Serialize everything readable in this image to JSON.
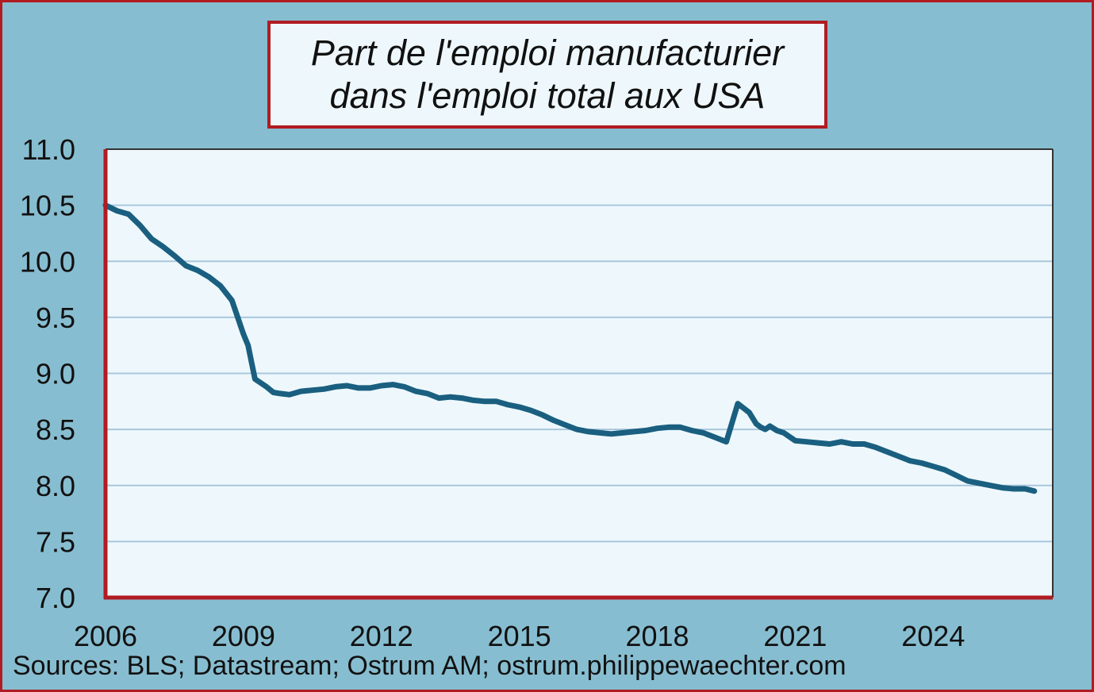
{
  "title_line1": "Part de l'emploi manufacturier",
  "title_line2": "dans l'emploi total aux USA",
  "source": "Sources: BLS; Datastream; Ostrum AM; ostrum.philippewaechter.com",
  "colors": {
    "background": "#87bdd0",
    "plot_area": "#eef8fc",
    "border": "#b01c22",
    "line": "#1a5f80",
    "grid": "#a9c7dd"
  },
  "chart_data": {
    "type": "line",
    "title": "Part de l'emploi manufacturier dans l'emploi total aux USA",
    "xlabel": "",
    "ylabel": "",
    "xlim": [
      2006,
      2026.6
    ],
    "ylim": [
      7.0,
      11.0
    ],
    "x_ticks": [
      "2006",
      "2009",
      "2012",
      "2015",
      "2018",
      "2021",
      "2024"
    ],
    "y_ticks": [
      "7.0",
      "7.5",
      "8.0",
      "8.5",
      "9.0",
      "9.5",
      "10.0",
      "10.5",
      "11.0"
    ],
    "grid": true,
    "legend": "none",
    "series": [
      {
        "x": [
          2006.0,
          2006.25,
          2006.5,
          2006.75,
          2007.0,
          2007.25,
          2007.5,
          2007.75,
          2008.0,
          2008.25,
          2008.5,
          2008.75,
          2009.0,
          2009.1,
          2009.25,
          2009.5,
          2009.65,
          2009.8,
          2010.0,
          2010.25,
          2010.5,
          2010.75,
          2011.0,
          2011.25,
          2011.5,
          2011.75,
          2012.0,
          2012.25,
          2012.5,
          2012.75,
          2013.0,
          2013.25,
          2013.5,
          2013.75,
          2014.0,
          2014.25,
          2014.5,
          2014.75,
          2015.0,
          2015.25,
          2015.5,
          2015.75,
          2016.0,
          2016.25,
          2016.5,
          2016.75,
          2017.0,
          2017.25,
          2017.5,
          2017.75,
          2018.0,
          2018.25,
          2018.5,
          2018.75,
          2019.0,
          2019.25,
          2019.5,
          2019.75,
          2020.0,
          2020.15,
          2020.25,
          2020.35,
          2020.45,
          2020.6,
          2020.75,
          2021.0,
          2021.25,
          2021.5,
          2021.75,
          2022.0,
          2022.25,
          2022.5,
          2022.75,
          2023.0,
          2023.25,
          2023.5,
          2023.75,
          2024.0,
          2024.25,
          2024.5,
          2024.75,
          2025.0,
          2025.25,
          2025.5,
          2025.75,
          2026.0,
          2026.2
        ],
        "values": [
          10.5,
          10.45,
          10.42,
          10.32,
          10.2,
          10.13,
          10.05,
          9.96,
          9.92,
          9.86,
          9.78,
          9.65,
          9.35,
          9.25,
          8.95,
          8.88,
          8.83,
          8.82,
          8.81,
          8.84,
          8.85,
          8.86,
          8.88,
          8.89,
          8.87,
          8.87,
          8.89,
          8.9,
          8.88,
          8.84,
          8.82,
          8.78,
          8.79,
          8.78,
          8.76,
          8.75,
          8.75,
          8.72,
          8.7,
          8.67,
          8.63,
          8.58,
          8.54,
          8.5,
          8.48,
          8.47,
          8.46,
          8.47,
          8.48,
          8.49,
          8.51,
          8.52,
          8.52,
          8.49,
          8.47,
          8.43,
          8.39,
          8.73,
          8.65,
          8.55,
          8.52,
          8.5,
          8.53,
          8.49,
          8.47,
          8.4,
          8.39,
          8.38,
          8.37,
          8.39,
          8.37,
          8.37,
          8.34,
          8.3,
          8.26,
          8.22,
          8.2,
          8.17,
          8.14,
          8.09,
          8.04,
          8.02,
          8.0,
          7.98,
          7.97,
          7.97,
          7.95
        ]
      }
    ]
  }
}
